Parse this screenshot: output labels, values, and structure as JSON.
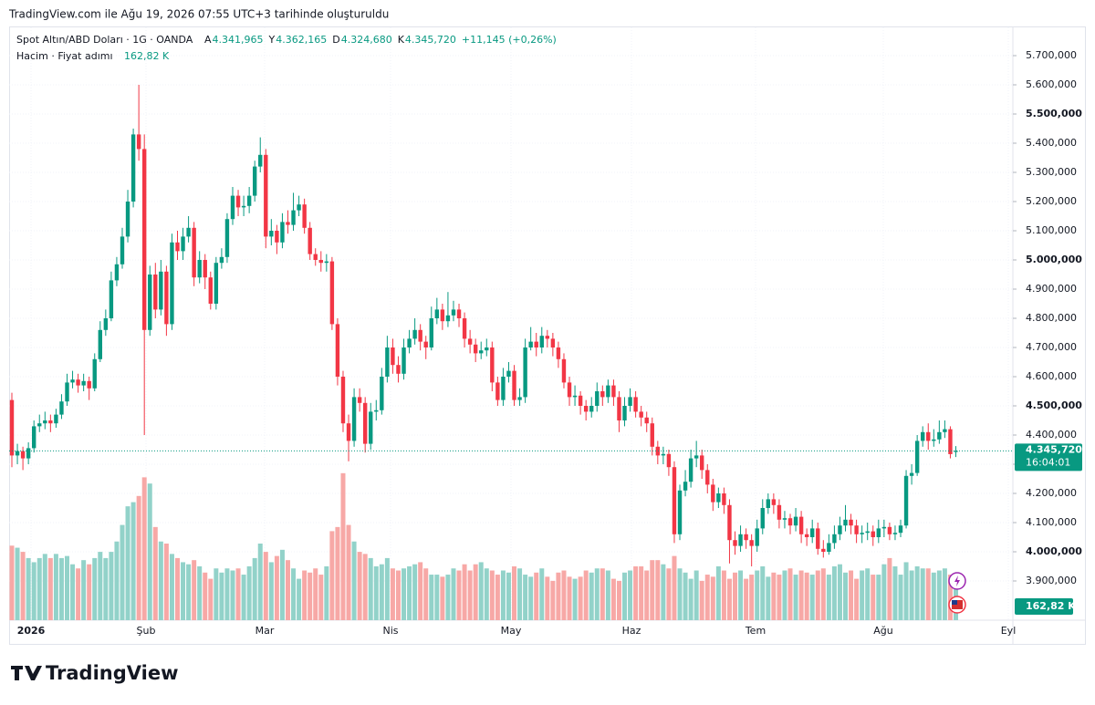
{
  "header": {
    "watermark": "TradingView.com ile Ağu 19, 2026 07:55 UTC+3 tarihinde oluşturuldu",
    "symbol": "Spot Altın/ABD Doları · 1G · OANDA",
    "volume_title": "Hacim · Fiyat adımı"
  },
  "footer": {
    "logo": "TradingView"
  },
  "chart_data": {
    "type": "candlestick",
    "ohlc_keys": [
      "A",
      "Y",
      "D",
      "K"
    ],
    "ohlc_labels": [
      "4.341,965",
      "4.362,165",
      "4.324,680",
      "4.345,720"
    ],
    "change_label": "+11,145 (+0,26%)",
    "countdown": "16:04:01",
    "last_volume_label": "162,82 K",
    "x_axis_labels": [
      "2026",
      "Şub",
      "Mar",
      "Nis",
      "May",
      "Haz",
      "Tem",
      "Ağu",
      "Eyl"
    ],
    "up_color": "#089981",
    "down_color": "#f23645",
    "volume_up_color": "#92d2c9",
    "volume_down_color": "#f7a8a6",
    "grid": true,
    "ylim": [
      3820,
      5800
    ],
    "yticks": [
      {
        "value": 3900,
        "label": "3.900,000"
      },
      {
        "value": 4000,
        "label": "4.000,000"
      },
      {
        "value": 4100,
        "label": "4.100,000"
      },
      {
        "value": 4200,
        "label": "4.200,000"
      },
      {
        "value": 4300,
        "label": "4.300,000"
      },
      {
        "value": 4400,
        "label": "4.400,000"
      },
      {
        "value": 4500,
        "label": "4.500,000"
      },
      {
        "value": 4600,
        "label": "4.600,000"
      },
      {
        "value": 4700,
        "label": "4.700,000"
      },
      {
        "value": 4800,
        "label": "4.800,000"
      },
      {
        "value": 4900,
        "label": "4.900,000"
      },
      {
        "value": 5000,
        "label": "5.000,000"
      },
      {
        "value": 5100,
        "label": "5.100,000"
      },
      {
        "value": 5200,
        "label": "5.200,000"
      },
      {
        "value": 5300,
        "label": "5.300,000"
      },
      {
        "value": 5400,
        "label": "5.400,000"
      },
      {
        "value": 5500,
        "label": "5.500,000"
      },
      {
        "value": 5600,
        "label": "5.600,000"
      },
      {
        "value": 5700,
        "label": "5.700,000"
      }
    ],
    "open": [
      4520,
      4330,
      4345,
      4320,
      4355,
      4430,
      4440,
      4450,
      4440,
      4470,
      4515,
      4580,
      4590,
      4570,
      4585,
      4560,
      4660,
      4760,
      4800,
      4930,
      4985,
      5080,
      5200,
      5430,
      5380,
      4760,
      4950,
      4830,
      4960,
      4780,
      5060,
      5030,
      5080,
      5110,
      4940,
      5000,
      4940,
      4850,
      4990,
      5010,
      5140,
      5220,
      5180,
      5185,
      5220,
      5320,
      5360,
      5080,
      5100,
      5060,
      5130,
      5120,
      5170,
      5190,
      5110,
      5020,
      5000,
      4990,
      4995,
      4780,
      4600,
      4440,
      4380,
      4530,
      4510,
      4370,
      4480,
      4485,
      4600,
      4700,
      4640,
      4610,
      4700,
      4730,
      4760,
      4720,
      4700,
      4800,
      4830,
      4790,
      4810,
      4830,
      4800,
      4730,
      4710,
      4680,
      4690,
      4700,
      4580,
      4520,
      4600,
      4620,
      4520,
      4530,
      4700,
      4720,
      4700,
      4740,
      4730,
      4700,
      4660,
      4580,
      4530,
      4535,
      4500,
      4480,
      4500,
      4550,
      4530,
      4570,
      4530,
      4450,
      4500,
      4530,
      4480,
      4460,
      4440,
      4360,
      4330,
      4335,
      4290,
      4060,
      4210,
      4240,
      4320,
      4330,
      4280,
      4230,
      4170,
      4200,
      4160,
      4040,
      4020,
      4060,
      4040,
      4020,
      4080,
      4150,
      4180,
      4160,
      4110,
      4115,
      4090,
      4120,
      4060,
      4050,
      4080,
      4010,
      4000,
      4030,
      4060,
      4090,
      4110,
      4090,
      4060,
      4065,
      4070,
      4050,
      4080,
      4085,
      4060,
      4065,
      4090,
      4260,
      4270,
      4380,
      4410,
      4380,
      4385,
      4410,
      4420,
      4341.965
    ],
    "high": [
      4545,
      4370,
      4360,
      4375,
      4450,
      4470,
      4480,
      4470,
      4490,
      4540,
      4610,
      4620,
      4610,
      4610,
      4600,
      4680,
      4790,
      4830,
      4960,
      5010,
      5110,
      5240,
      5450,
      5600,
      5430,
      4980,
      4990,
      5000,
      4980,
      5090,
      5100,
      5110,
      5150,
      5130,
      5030,
      5020,
      4960,
      5010,
      5040,
      5160,
      5250,
      5240,
      5220,
      5250,
      5340,
      5420,
      5380,
      5140,
      5120,
      5160,
      5170,
      5230,
      5220,
      5210,
      5130,
      5040,
      5030,
      5020,
      5010,
      4800,
      4620,
      4470,
      4560,
      4560,
      4530,
      4510,
      4520,
      4630,
      4740,
      4730,
      4670,
      4730,
      4760,
      4800,
      4780,
      4740,
      4840,
      4870,
      4850,
      4890,
      4860,
      4850,
      4820,
      4760,
      4730,
      4720,
      4730,
      4720,
      4600,
      4630,
      4650,
      4640,
      4560,
      4730,
      4770,
      4750,
      4770,
      4760,
      4750,
      4720,
      4680,
      4600,
      4570,
      4550,
      4520,
      4530,
      4580,
      4570,
      4590,
      4590,
      4550,
      4530,
      4560,
      4550,
      4500,
      4480,
      4460,
      4380,
      4360,
      4350,
      4310,
      4230,
      4280,
      4350,
      4380,
      4350,
      4300,
      4250,
      4220,
      4220,
      4180,
      4070,
      4090,
      4080,
      4060,
      4110,
      4180,
      4200,
      4200,
      4180,
      4140,
      4130,
      4150,
      4140,
      4080,
      4110,
      4100,
      4040,
      4060,
      4090,
      4120,
      4160,
      4130,
      4110,
      4090,
      4100,
      4090,
      4110,
      4110,
      4100,
      4090,
      4110,
      4280,
      4300,
      4400,
      4430,
      4440,
      4420,
      4450,
      4450,
      4430,
      4362.165
    ],
    "low": [
      4290,
      4300,
      4280,
      4300,
      4340,
      4410,
      4420,
      4410,
      4425,
      4455,
      4500,
      4560,
      4545,
      4550,
      4520,
      4550,
      4650,
      4740,
      4790,
      4910,
      4970,
      5060,
      5180,
      5340,
      4400,
      4740,
      4800,
      4810,
      4740,
      4760,
      5000,
      5000,
      5060,
      4910,
      4920,
      4900,
      4830,
      4830,
      4970,
      4990,
      5120,
      5150,
      5150,
      5160,
      5200,
      5300,
      5040,
      5050,
      5020,
      5040,
      5090,
      5100,
      5150,
      5090,
      5000,
      4980,
      4960,
      4960,
      4760,
      4570,
      4410,
      4310,
      4360,
      4480,
      4340,
      4350,
      4450,
      4470,
      4580,
      4610,
      4580,
      4590,
      4680,
      4710,
      4690,
      4660,
      4690,
      4780,
      4760,
      4770,
      4790,
      4770,
      4700,
      4680,
      4650,
      4660,
      4670,
      4550,
      4500,
      4500,
      4580,
      4500,
      4500,
      4510,
      4690,
      4670,
      4680,
      4700,
      4670,
      4630,
      4560,
      4500,
      4500,
      4470,
      4450,
      4460,
      4480,
      4500,
      4510,
      4500,
      4410,
      4430,
      4480,
      4460,
      4430,
      4410,
      4330,
      4300,
      4300,
      4260,
      4030,
      4040,
      4190,
      4220,
      4290,
      4250,
      4200,
      4140,
      4150,
      4130,
      3960,
      3990,
      4000,
      4010,
      3950,
      4000,
      4060,
      4130,
      4130,
      4080,
      4080,
      4060,
      4070,
      4030,
      4020,
      4030,
      3990,
      3980,
      3990,
      4010,
      4040,
      4070,
      4060,
      4030,
      4030,
      4040,
      4020,
      4030,
      4050,
      4040,
      4040,
      4050,
      4080,
      4230,
      4260,
      4360,
      4350,
      4360,
      4370,
      4390,
      4320,
      4324.68
    ],
    "close": [
      4330,
      4345,
      4320,
      4355,
      4430,
      4440,
      4450,
      4440,
      4470,
      4515,
      4580,
      4590,
      4570,
      4585,
      4560,
      4660,
      4760,
      4800,
      4930,
      4985,
      5080,
      5200,
      5430,
      5380,
      4760,
      4950,
      4830,
      4960,
      4780,
      5060,
      5030,
      5080,
      5110,
      4940,
      5000,
      4940,
      4850,
      4990,
      5010,
      5140,
      5220,
      5180,
      5185,
      5220,
      5320,
      5360,
      5080,
      5100,
      5060,
      5130,
      5120,
      5170,
      5190,
      5110,
      5020,
      5000,
      4990,
      4995,
      4780,
      4600,
      4440,
      4380,
      4530,
      4510,
      4370,
      4480,
      4485,
      4600,
      4700,
      4640,
      4610,
      4700,
      4730,
      4760,
      4720,
      4700,
      4800,
      4830,
      4790,
      4810,
      4830,
      4800,
      4730,
      4710,
      4680,
      4690,
      4700,
      4580,
      4520,
      4600,
      4620,
      4520,
      4530,
      4700,
      4720,
      4700,
      4740,
      4730,
      4700,
      4660,
      4580,
      4530,
      4535,
      4500,
      4480,
      4500,
      4550,
      4530,
      4570,
      4530,
      4450,
      4500,
      4530,
      4480,
      4460,
      4440,
      4360,
      4330,
      4335,
      4290,
      4060,
      4210,
      4240,
      4320,
      4330,
      4280,
      4230,
      4170,
      4200,
      4160,
      4040,
      4020,
      4060,
      4040,
      4020,
      4080,
      4150,
      4180,
      4160,
      4110,
      4115,
      4090,
      4120,
      4060,
      4050,
      4080,
      4010,
      4000,
      4030,
      4060,
      4090,
      4110,
      4090,
      4060,
      4065,
      4070,
      4050,
      4080,
      4085,
      4060,
      4065,
      4090,
      4260,
      4270,
      4380,
      4410,
      4380,
      4385,
      4410,
      4420,
      4334.575,
      4345.72
    ],
    "volume": [
      360,
      350,
      330,
      300,
      280,
      300,
      320,
      300,
      320,
      300,
      310,
      270,
      250,
      290,
      270,
      300,
      330,
      300,
      330,
      380,
      460,
      550,
      570,
      600,
      690,
      660,
      450,
      380,
      370,
      320,
      300,
      280,
      270,
      290,
      260,
      230,
      200,
      250,
      230,
      250,
      240,
      250,
      220,
      260,
      300,
      370,
      330,
      280,
      310,
      340,
      290,
      250,
      200,
      240,
      230,
      250,
      220,
      260,
      430,
      450,
      710,
      460,
      380,
      330,
      320,
      300,
      260,
      270,
      300,
      250,
      240,
      250,
      260,
      270,
      280,
      250,
      220,
      220,
      210,
      220,
      250,
      240,
      270,
      240,
      270,
      280,
      250,
      240,
      220,
      240,
      230,
      260,
      250,
      220,
      210,
      230,
      250,
      210,
      190,
      230,
      240,
      210,
      200,
      210,
      240,
      230,
      250,
      250,
      240,
      200,
      190,
      230,
      240,
      260,
      260,
      240,
      290,
      290,
      270,
      250,
      310,
      250,
      230,
      200,
      240,
      190,
      220,
      210,
      260,
      240,
      200,
      230,
      240,
      200,
      220,
      240,
      260,
      210,
      230,
      220,
      240,
      250,
      220,
      240,
      230,
      220,
      240,
      250,
      220,
      260,
      270,
      230,
      240,
      200,
      240,
      250,
      220,
      220,
      270,
      300,
      260,
      220,
      280,
      240,
      260,
      250,
      250,
      230,
      240,
      250,
      220,
      162.82
    ]
  }
}
